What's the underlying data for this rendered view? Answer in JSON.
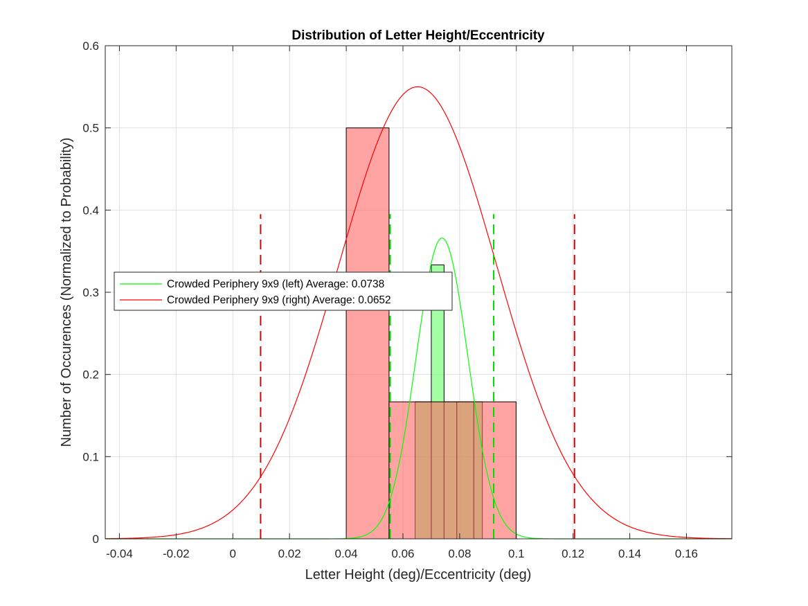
{
  "chart_data": {
    "type": "bar",
    "title": "Distribution of Letter Height/Eccentricity",
    "xlabel": "Letter Height (deg)/Eccentricity (deg)",
    "ylabel": "Number of Occurences (Normalized to Probability)",
    "xlim": [
      -0.045,
      0.176
    ],
    "ylim": [
      0,
      0.6
    ],
    "xticks": [
      "-0.04",
      "-0.02",
      "0",
      "0.02",
      "0.04",
      "0.06",
      "0.08",
      "0.1",
      "0.12",
      "0.14",
      "0.16"
    ],
    "yticks": [
      "0",
      "0.1",
      "0.2",
      "0.3",
      "0.4",
      "0.5",
      "0.6"
    ],
    "grid": true,
    "legend_placement": "middle-left",
    "series": [
      {
        "name": "Crowded Periphery 9x9 (left) Average: 0.0738",
        "color": "#00ff00",
        "bar_color": "#66ff66",
        "mean": 0.0738,
        "std": 0.0091,
        "curve_peak": 0.366,
        "bins": [
          {
            "x0": 0.0643,
            "x1": 0.07,
            "value": 0.1667
          },
          {
            "x0": 0.07,
            "x1": 0.0745,
            "value": 0.3333
          },
          {
            "x0": 0.0745,
            "x1": 0.079,
            "value": 0.1667
          },
          {
            "x0": 0.079,
            "x1": 0.085,
            "value": 0.1667
          },
          {
            "x0": 0.085,
            "x1": 0.088,
            "value": 0.1667
          }
        ],
        "dashed_lines": [
          0.0555,
          0.092
        ]
      },
      {
        "name": "Crowded Periphery 9x9 (right) Average: 0.0652",
        "color": "#ff0000",
        "bar_color": "#ff6666",
        "mean": 0.0652,
        "std": 0.0278,
        "curve_peak": 0.55,
        "bins": [
          {
            "x0": 0.04,
            "x1": 0.0551,
            "value": 0.5
          },
          {
            "x0": 0.0551,
            "x1": 0.0999,
            "value": 0.1667
          }
        ],
        "dashed_lines": [
          0.0098,
          0.1205
        ]
      }
    ]
  }
}
